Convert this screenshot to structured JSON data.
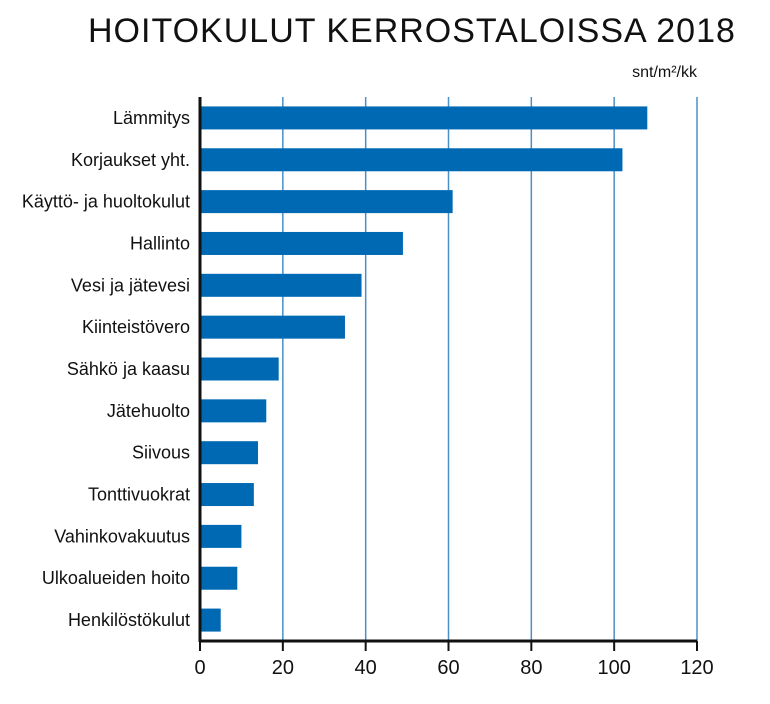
{
  "chart_data": {
    "type": "bar",
    "orientation": "horizontal",
    "title": "HOITOKULUT KERROSTALOISSA 2018",
    "unit_label": "snt/m²/kk",
    "categories": [
      "Lämmitys",
      "Korjaukset yht.",
      "Käyttö- ja huoltokulut",
      "Hallinto",
      "Vesi ja jätevesi",
      "Kiinteistövero",
      "Sähkö ja kaasu",
      "Jätehuolto",
      "Siivous",
      "Tonttivuokrat",
      "Vahinkovakuutus",
      "Ulkoalueiden hoito",
      "Henkilöstökulut"
    ],
    "values": [
      108,
      102,
      61,
      49,
      39,
      35,
      19,
      16,
      14,
      13,
      10,
      9,
      5
    ],
    "xlim": [
      0,
      120
    ],
    "xticks": [
      "0",
      "20",
      "40",
      "60",
      "80",
      "100",
      "120"
    ],
    "grid": true,
    "colors": {
      "bar": "#0069b4",
      "grid": "#4a90c8",
      "axis": "#111111"
    }
  }
}
